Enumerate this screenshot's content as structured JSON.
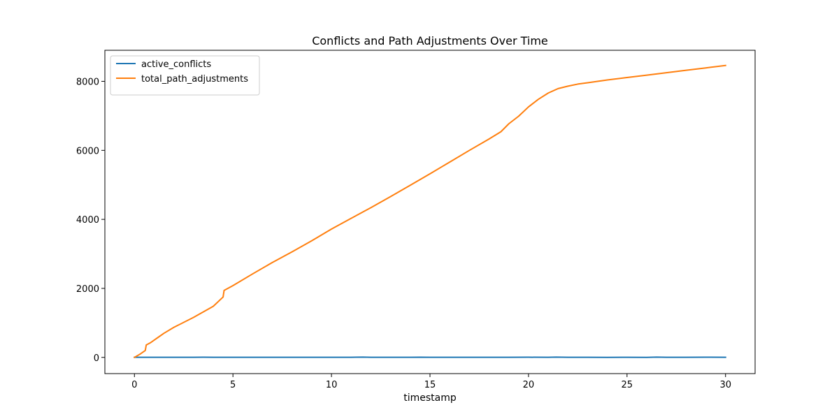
{
  "chart_data": {
    "type": "line",
    "title": "Conflicts and Path Adjustments Over Time",
    "xlabel": "timestamp",
    "ylabel": "",
    "xlim": [
      -1.5,
      31.5
    ],
    "ylim": [
      -470,
      8900
    ],
    "xticks": [
      0,
      5,
      10,
      15,
      20,
      25,
      30
    ],
    "yticks": [
      0,
      2000,
      4000,
      6000,
      8000
    ],
    "legend_position": "top-left",
    "grid": false,
    "series": [
      {
        "name": "active_conflicts",
        "color": "#1f77b4",
        "x": [
          0,
          1,
          2,
          3,
          3.5,
          4,
          5,
          6,
          7,
          8,
          9,
          10,
          11,
          11.6,
          12,
          13,
          14,
          14.5,
          15,
          16,
          17,
          18,
          19,
          20,
          21,
          21.4,
          22,
          23,
          24,
          25,
          26,
          26.5,
          27,
          28,
          29,
          30
        ],
        "y": [
          3,
          3,
          3,
          3,
          6,
          3,
          3,
          2,
          3,
          3,
          4,
          3,
          3,
          8,
          4,
          3,
          2,
          6,
          2,
          3,
          3,
          4,
          2,
          5,
          2,
          8,
          3,
          3,
          0,
          3,
          1,
          8,
          3,
          3,
          6,
          3
        ]
      },
      {
        "name": "total_path_adjustments",
        "color": "#ff7f0e",
        "x": [
          0,
          0.3,
          0.55,
          0.6,
          0.8,
          1.0,
          1.2,
          1.5,
          2,
          3,
          4,
          4.5,
          4.55,
          5,
          6,
          7,
          8,
          9,
          10,
          11,
          12,
          13,
          14,
          15,
          16,
          17,
          18,
          18.6,
          19,
          19.5,
          20,
          20.5,
          21,
          21.5,
          22,
          22.5,
          23,
          24,
          25,
          26,
          27,
          28,
          29,
          30
        ],
        "y": [
          0,
          100,
          200,
          360,
          420,
          500,
          580,
          700,
          870,
          1160,
          1480,
          1750,
          1940,
          2080,
          2420,
          2750,
          3060,
          3380,
          3720,
          4030,
          4340,
          4660,
          4990,
          5320,
          5660,
          6000,
          6330,
          6540,
          6770,
          6990,
          7260,
          7480,
          7660,
          7790,
          7860,
          7920,
          7960,
          8040,
          8110,
          8180,
          8250,
          8320,
          8390,
          8460
        ]
      }
    ]
  }
}
